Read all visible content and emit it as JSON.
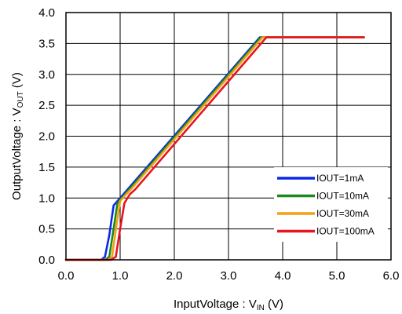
{
  "chart_data": {
    "type": "line",
    "xlabel": "InputVoltage : V",
    "xlabel_sub": "IN",
    "xlabel_unit": " (V)",
    "ylabel": "OutputVoltage : V",
    "ylabel_sub": "OUT",
    "ylabel_unit": " (V)",
    "xlim": [
      0.0,
      6.0
    ],
    "ylim": [
      0.0,
      4.0
    ],
    "xticks": [
      "0.0",
      "1.0",
      "2.0",
      "3.0",
      "4.0",
      "5.0",
      "6.0"
    ],
    "yticks": [
      "0.0",
      "0.5",
      "1.0",
      "1.5",
      "2.0",
      "2.5",
      "3.0",
      "3.5",
      "4.0"
    ],
    "grid": true,
    "legend_position": "bottom-right",
    "series": [
      {
        "name": "IOUT=1mA",
        "color": "#0a28e6",
        "points": [
          [
            0.0,
            0.0
          ],
          [
            0.65,
            0.0
          ],
          [
            0.72,
            0.05
          ],
          [
            0.8,
            0.4
          ],
          [
            0.88,
            0.88
          ],
          [
            1.0,
            1.0
          ],
          [
            1.1,
            1.1
          ],
          [
            3.58,
            3.6
          ],
          [
            5.5,
            3.6
          ]
        ]
      },
      {
        "name": "IOUT=10mA",
        "color": "#1a8a1a",
        "points": [
          [
            0.0,
            0.0
          ],
          [
            0.72,
            0.0
          ],
          [
            0.8,
            0.05
          ],
          [
            0.88,
            0.5
          ],
          [
            0.95,
            0.92
          ],
          [
            1.05,
            1.02
          ],
          [
            1.15,
            1.12
          ],
          [
            3.6,
            3.6
          ],
          [
            5.5,
            3.6
          ]
        ]
      },
      {
        "name": "IOUT=30mA",
        "color": "#f5a014",
        "points": [
          [
            0.0,
            0.0
          ],
          [
            0.78,
            0.0
          ],
          [
            0.85,
            0.05
          ],
          [
            0.93,
            0.55
          ],
          [
            1.0,
            0.95
          ],
          [
            1.1,
            1.05
          ],
          [
            1.2,
            1.14
          ],
          [
            3.63,
            3.6
          ],
          [
            5.5,
            3.6
          ]
        ]
      },
      {
        "name": "IOUT=100mA",
        "color": "#e8141e",
        "points": [
          [
            0.0,
            0.0
          ],
          [
            0.83,
            0.0
          ],
          [
            0.92,
            0.05
          ],
          [
            1.0,
            0.5
          ],
          [
            1.08,
            0.92
          ],
          [
            1.18,
            1.06
          ],
          [
            1.28,
            1.14
          ],
          [
            3.7,
            3.6
          ],
          [
            5.5,
            3.6
          ]
        ]
      }
    ]
  }
}
